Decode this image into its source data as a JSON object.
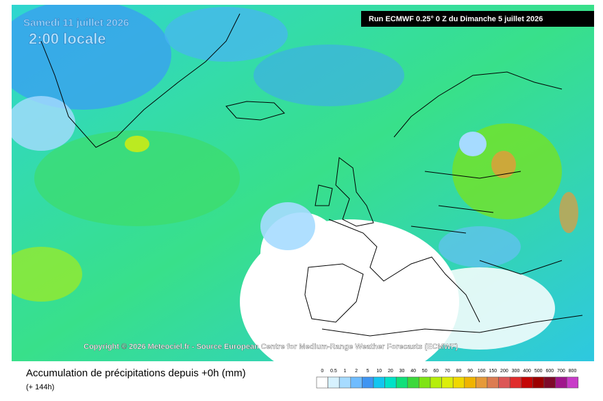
{
  "map": {
    "date": "Samedi 11 juillet 2026",
    "time": "2:00 locale",
    "run_label": "Run ECMWF 0.25° 0 Z du Dimanche 5 juillet 2026",
    "copyright": "Copyright © 2026 Meteociel.fr - Source European Centre for Medium-Range Weather Forecasts (ECMWF)"
  },
  "caption": {
    "title": "Accumulation de précipitations depuis +0h (mm)",
    "subtitle": "(+ 144h)"
  },
  "legend": {
    "values": [
      0,
      0.5,
      1,
      2,
      5,
      10,
      20,
      30,
      40,
      50,
      60,
      70,
      80,
      90,
      100,
      150,
      200,
      300,
      400,
      500,
      600,
      700,
      800
    ],
    "colors": [
      "#ffffff",
      "#d7f2ff",
      "#a6dbff",
      "#6fbcff",
      "#3f95f2",
      "#12c6f0",
      "#00e2c8",
      "#10e07a",
      "#3cd83c",
      "#7ee414",
      "#b6ee0a",
      "#dcee0a",
      "#f0d800",
      "#f0b400",
      "#e69a3a",
      "#dc7c52",
      "#dc5656",
      "#e02c2c",
      "#c40606",
      "#9c0000",
      "#7e0a2a",
      "#a0168c",
      "#c83cc8"
    ]
  }
}
